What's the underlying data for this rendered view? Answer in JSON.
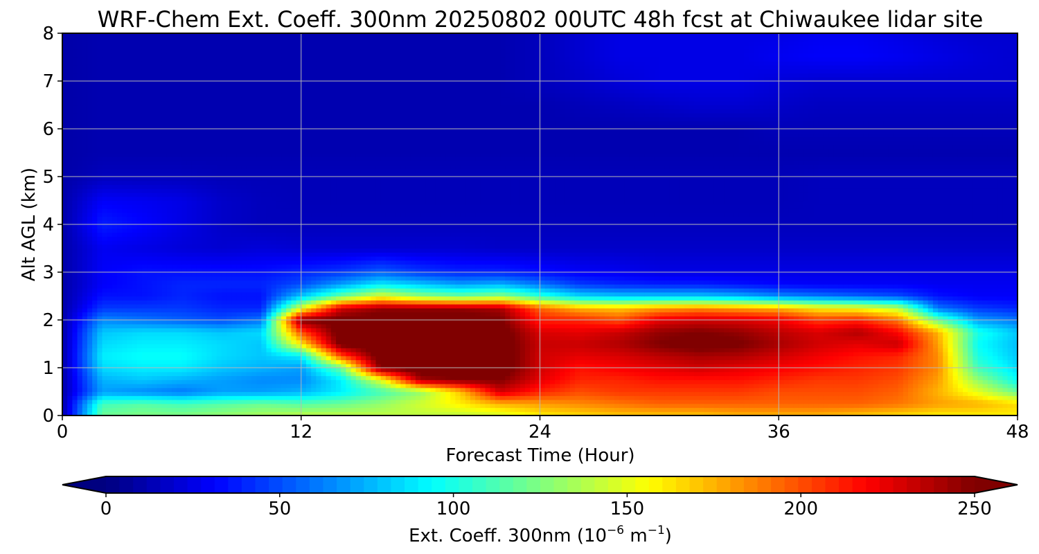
{
  "chart_data": {
    "type": "heatmap",
    "title": "WRF-Chem Ext. Coeff. 300nm  20250802 00UTC 48h fcst at Chiwaukee lidar site",
    "xlabel": "Forecast Time (Hour)",
    "ylabel": "Alt AGL (km)",
    "xlim": [
      0,
      48
    ],
    "ylim": [
      0,
      8
    ],
    "xticks": [
      0,
      12,
      24,
      36,
      48
    ],
    "yticks": [
      0,
      1,
      2,
      3,
      4,
      5,
      6,
      7,
      8
    ],
    "grid": true,
    "colormap": "jet",
    "colorbar": {
      "label_main": "Ext. Coeff. 300nm  (10",
      "label_exp1": "−6",
      "label_mid": " m",
      "label_exp2": "−1",
      "label_end": ")",
      "min": 0,
      "max": 250,
      "ticks": [
        0,
        50,
        100,
        150,
        200,
        250
      ],
      "extend": "both",
      "orientation": "horizontal"
    },
    "x": [
      0,
      2,
      4,
      6,
      8,
      10,
      12,
      14,
      16,
      18,
      20,
      22,
      24,
      26,
      28,
      30,
      32,
      34,
      36,
      38,
      40,
      42,
      44,
      46,
      48
    ],
    "y": [
      0,
      0.25,
      0.5,
      0.75,
      1,
      1.25,
      1.5,
      1.75,
      2,
      2.25,
      2.5,
      2.75,
      3,
      3.5,
      4,
      4.5,
      5,
      5.5,
      6,
      6.5,
      7,
      7.5,
      8
    ],
    "values": [
      [
        10,
        120,
        125,
        125,
        130,
        135,
        140,
        140,
        140,
        140,
        140,
        145,
        160,
        165,
        170,
        170,
        170,
        175,
        175,
        175,
        170,
        165,
        160,
        160,
        160
      ],
      [
        10,
        110,
        115,
        110,
        115,
        120,
        115,
        120,
        130,
        145,
        160,
        175,
        180,
        185,
        190,
        195,
        195,
        195,
        195,
        195,
        195,
        190,
        180,
        175,
        165
      ],
      [
        10,
        70,
        65,
        60,
        70,
        70,
        75,
        90,
        110,
        130,
        170,
        230,
        210,
        200,
        205,
        205,
        205,
        205,
        200,
        200,
        200,
        195,
        175,
        150,
        120
      ],
      [
        10,
        75,
        80,
        75,
        70,
        65,
        65,
        90,
        150,
        240,
        250,
        250,
        225,
        210,
        210,
        215,
        215,
        215,
        210,
        205,
        205,
        200,
        180,
        130,
        95
      ],
      [
        10,
        85,
        90,
        90,
        80,
        75,
        70,
        120,
        250,
        260,
        260,
        260,
        230,
        215,
        220,
        225,
        230,
        225,
        220,
        215,
        210,
        205,
        185,
        110,
        85
      ],
      [
        10,
        90,
        95,
        95,
        85,
        80,
        90,
        200,
        260,
        265,
        265,
        262,
        230,
        225,
        228,
        235,
        240,
        238,
        230,
        222,
        215,
        210,
        185,
        100,
        80
      ],
      [
        10,
        85,
        90,
        90,
        85,
        80,
        160,
        255,
        262,
        265,
        265,
        260,
        232,
        232,
        238,
        250,
        258,
        252,
        240,
        230,
        225,
        232,
        180,
        95,
        78
      ],
      [
        10,
        80,
        85,
        85,
        80,
        85,
        200,
        260,
        262,
        262,
        262,
        258,
        228,
        225,
        232,
        245,
        250,
        245,
        235,
        228,
        238,
        218,
        175,
        100,
        80
      ],
      [
        10,
        65,
        60,
        55,
        50,
        60,
        250,
        255,
        258,
        258,
        258,
        252,
        212,
        210,
        200,
        225,
        230,
        228,
        222,
        205,
        210,
        190,
        120,
        70,
        60
      ],
      [
        10,
        45,
        45,
        45,
        40,
        40,
        150,
        230,
        245,
        245,
        245,
        240,
        195,
        175,
        170,
        180,
        185,
        180,
        175,
        160,
        155,
        140,
        60,
        45,
        40
      ],
      [
        10,
        35,
        35,
        40,
        35,
        35,
        80,
        120,
        150,
        130,
        120,
        130,
        105,
        85,
        80,
        80,
        80,
        75,
        65,
        60,
        55,
        50,
        35,
        30,
        30
      ],
      [
        10,
        30,
        35,
        40,
        40,
        40,
        50,
        70,
        90,
        80,
        70,
        75,
        60,
        45,
        40,
        38,
        38,
        35,
        32,
        30,
        30,
        30,
        28,
        28,
        28
      ],
      [
        10,
        30,
        35,
        35,
        35,
        35,
        40,
        45,
        55,
        45,
        40,
        40,
        35,
        30,
        28,
        25,
        25,
        25,
        25,
        25,
        25,
        25,
        25,
        25,
        25
      ],
      [
        10,
        28,
        25,
        22,
        20,
        22,
        20,
        20,
        20,
        20,
        20,
        18,
        18,
        18,
        18,
        18,
        18,
        18,
        18,
        18,
        18,
        18,
        18,
        18,
        18
      ],
      [
        10,
        38,
        32,
        25,
        18,
        15,
        15,
        15,
        15,
        15,
        15,
        15,
        15,
        15,
        15,
        15,
        15,
        15,
        15,
        15,
        15,
        15,
        15,
        15,
        15
      ],
      [
        10,
        30,
        28,
        25,
        18,
        15,
        14,
        14,
        14,
        14,
        14,
        14,
        14,
        14,
        14,
        14,
        14,
        14,
        14,
        15,
        15,
        15,
        15,
        15,
        15
      ],
      [
        10,
        15,
        15,
        15,
        14,
        14,
        14,
        14,
        14,
        14,
        14,
        14,
        14,
        14,
        14,
        14,
        14,
        14,
        14,
        15,
        15,
        15,
        15,
        15,
        15
      ],
      [
        10,
        12,
        12,
        12,
        12,
        12,
        12,
        12,
        12,
        12,
        12,
        12,
        12,
        12,
        12,
        12,
        12,
        12,
        12,
        12,
        12,
        12,
        12,
        12,
        12
      ],
      [
        10,
        12,
        12,
        12,
        12,
        12,
        12,
        12,
        12,
        12,
        12,
        12,
        12,
        12,
        12,
        12,
        12,
        12,
        14,
        14,
        14,
        14,
        14,
        14,
        14
      ],
      [
        10,
        12,
        12,
        12,
        12,
        12,
        12,
        12,
        12,
        12,
        12,
        12,
        12,
        14,
        16,
        18,
        20,
        20,
        18,
        16,
        16,
        16,
        16,
        16,
        16
      ],
      [
        10,
        12,
        12,
        12,
        12,
        12,
        12,
        12,
        12,
        12,
        12,
        12,
        15,
        18,
        22,
        25,
        25,
        25,
        22,
        20,
        20,
        20,
        20,
        20,
        20
      ],
      [
        10,
        12,
        12,
        12,
        12,
        12,
        12,
        12,
        12,
        12,
        12,
        12,
        15,
        20,
        25,
        25,
        25,
        25,
        28,
        30,
        30,
        28,
        25,
        22,
        20
      ],
      [
        10,
        12,
        12,
        12,
        12,
        12,
        12,
        12,
        12,
        12,
        12,
        12,
        15,
        20,
        25,
        25,
        25,
        25,
        25,
        28,
        28,
        25,
        22,
        20,
        20
      ]
    ]
  }
}
